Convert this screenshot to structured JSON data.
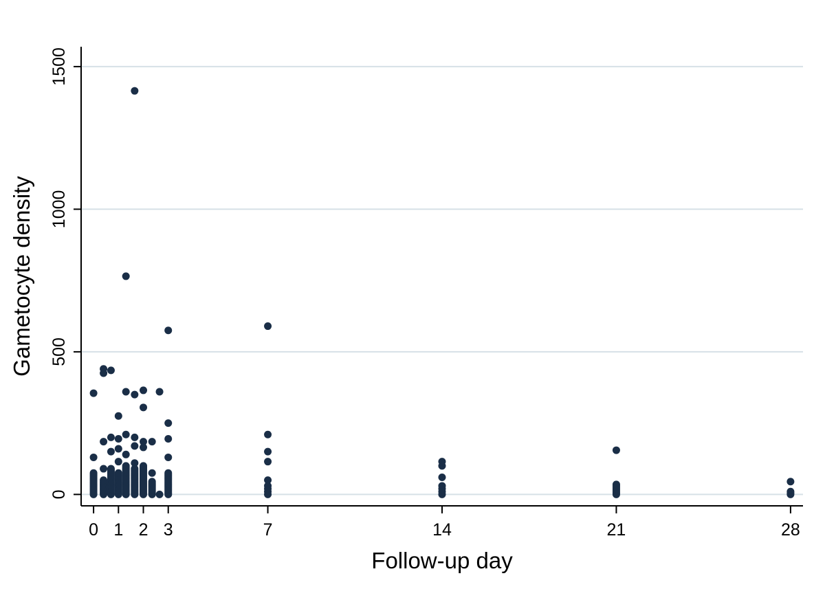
{
  "colors": {
    "marker": "#1a2e47",
    "grid": "#d6e0e6",
    "axis": "#000000",
    "background": "#ffffff"
  },
  "chart_data": {
    "type": "scatter",
    "title": "",
    "xlabel": "Follow-up day",
    "ylabel": "Gametocyte density",
    "xlim": [
      -0.5,
      28.5
    ],
    "ylim": [
      -40,
      1560
    ],
    "x_ticks": [
      0,
      1,
      2,
      3,
      7,
      14,
      21,
      28
    ],
    "x_tick_labels": [
      "0",
      "1",
      "2",
      "3",
      "7",
      "14",
      "21",
      "28"
    ],
    "y_ticks": [
      0,
      500,
      1000,
      1500
    ],
    "y_tick_labels": [
      "0",
      "500",
      "1000",
      "1500"
    ],
    "grid": "horizontal",
    "legend": "none",
    "points": [
      [
        0,
        0
      ],
      [
        0,
        5
      ],
      [
        0,
        10
      ],
      [
        0,
        15
      ],
      [
        0,
        20
      ],
      [
        0,
        25
      ],
      [
        0,
        30
      ],
      [
        0,
        35
      ],
      [
        0,
        40
      ],
      [
        0,
        45
      ],
      [
        0,
        50
      ],
      [
        0,
        55
      ],
      [
        0,
        60
      ],
      [
        0,
        65
      ],
      [
        0,
        70
      ],
      [
        0,
        75
      ],
      [
        0,
        130
      ],
      [
        0,
        355
      ],
      [
        0.4,
        0
      ],
      [
        0.4,
        5
      ],
      [
        0.4,
        10
      ],
      [
        0.4,
        15
      ],
      [
        0.4,
        20
      ],
      [
        0.4,
        25
      ],
      [
        0.4,
        30
      ],
      [
        0.4,
        35
      ],
      [
        0.4,
        40
      ],
      [
        0.4,
        45
      ],
      [
        0.4,
        50
      ],
      [
        0.4,
        90
      ],
      [
        0.4,
        185
      ],
      [
        0.4,
        425
      ],
      [
        0.4,
        440
      ],
      [
        0.7,
        0
      ],
      [
        0.7,
        5
      ],
      [
        0.7,
        10
      ],
      [
        0.7,
        15
      ],
      [
        0.7,
        20
      ],
      [
        0.7,
        25
      ],
      [
        0.7,
        30
      ],
      [
        0.7,
        35
      ],
      [
        0.7,
        40
      ],
      [
        0.7,
        45
      ],
      [
        0.7,
        50
      ],
      [
        0.7,
        55
      ],
      [
        0.7,
        60
      ],
      [
        0.7,
        65
      ],
      [
        0.7,
        70
      ],
      [
        0.7,
        75
      ],
      [
        0.7,
        80
      ],
      [
        0.7,
        85
      ],
      [
        0.7,
        90
      ],
      [
        0.7,
        150
      ],
      [
        0.7,
        200
      ],
      [
        0.7,
        435
      ],
      [
        1,
        0
      ],
      [
        1,
        5
      ],
      [
        1,
        10
      ],
      [
        1,
        15
      ],
      [
        1,
        20
      ],
      [
        1,
        25
      ],
      [
        1,
        30
      ],
      [
        1,
        35
      ],
      [
        1,
        40
      ],
      [
        1,
        45
      ],
      [
        1,
        50
      ],
      [
        1,
        55
      ],
      [
        1,
        60
      ],
      [
        1,
        65
      ],
      [
        1,
        70
      ],
      [
        1,
        75
      ],
      [
        1,
        115
      ],
      [
        1,
        160
      ],
      [
        1,
        195
      ],
      [
        1,
        275
      ],
      [
        1.3,
        0
      ],
      [
        1.3,
        5
      ],
      [
        1.3,
        10
      ],
      [
        1.3,
        15
      ],
      [
        1.3,
        20
      ],
      [
        1.3,
        25
      ],
      [
        1.3,
        30
      ],
      [
        1.3,
        35
      ],
      [
        1.3,
        40
      ],
      [
        1.3,
        45
      ],
      [
        1.3,
        50
      ],
      [
        1.3,
        55
      ],
      [
        1.3,
        60
      ],
      [
        1.3,
        65
      ],
      [
        1.3,
        70
      ],
      [
        1.3,
        75
      ],
      [
        1.3,
        80
      ],
      [
        1.3,
        85
      ],
      [
        1.3,
        90
      ],
      [
        1.3,
        95
      ],
      [
        1.3,
        100
      ],
      [
        1.3,
        140
      ],
      [
        1.3,
        210
      ],
      [
        1.3,
        360
      ],
      [
        1.3,
        765
      ],
      [
        1.65,
        0
      ],
      [
        1.65,
        5
      ],
      [
        1.65,
        10
      ],
      [
        1.65,
        15
      ],
      [
        1.65,
        20
      ],
      [
        1.65,
        25
      ],
      [
        1.65,
        30
      ],
      [
        1.65,
        35
      ],
      [
        1.65,
        40
      ],
      [
        1.65,
        45
      ],
      [
        1.65,
        50
      ],
      [
        1.65,
        55
      ],
      [
        1.65,
        60
      ],
      [
        1.65,
        65
      ],
      [
        1.65,
        70
      ],
      [
        1.65,
        75
      ],
      [
        1.65,
        80
      ],
      [
        1.65,
        85
      ],
      [
        1.65,
        90
      ],
      [
        1.65,
        110
      ],
      [
        1.65,
        170
      ],
      [
        1.65,
        200
      ],
      [
        1.65,
        350
      ],
      [
        1.65,
        1415
      ],
      [
        2,
        0
      ],
      [
        2,
        5
      ],
      [
        2,
        10
      ],
      [
        2,
        15
      ],
      [
        2,
        20
      ],
      [
        2,
        25
      ],
      [
        2,
        30
      ],
      [
        2,
        35
      ],
      [
        2,
        40
      ],
      [
        2,
        45
      ],
      [
        2,
        50
      ],
      [
        2,
        55
      ],
      [
        2,
        60
      ],
      [
        2,
        65
      ],
      [
        2,
        70
      ],
      [
        2,
        75
      ],
      [
        2,
        80
      ],
      [
        2,
        85
      ],
      [
        2,
        90
      ],
      [
        2,
        95
      ],
      [
        2,
        100
      ],
      [
        2,
        165
      ],
      [
        2,
        185
      ],
      [
        2,
        305
      ],
      [
        2,
        365
      ],
      [
        2.35,
        0
      ],
      [
        2.35,
        5
      ],
      [
        2.35,
        10
      ],
      [
        2.35,
        15
      ],
      [
        2.35,
        20
      ],
      [
        2.35,
        25
      ],
      [
        2.35,
        30
      ],
      [
        2.35,
        35
      ],
      [
        2.35,
        40
      ],
      [
        2.35,
        45
      ],
      [
        2.35,
        75
      ],
      [
        2.35,
        185
      ],
      [
        2.65,
        0
      ],
      [
        2.65,
        360
      ],
      [
        3,
        0
      ],
      [
        3,
        5
      ],
      [
        3,
        10
      ],
      [
        3,
        15
      ],
      [
        3,
        20
      ],
      [
        3,
        25
      ],
      [
        3,
        30
      ],
      [
        3,
        35
      ],
      [
        3,
        40
      ],
      [
        3,
        45
      ],
      [
        3,
        50
      ],
      [
        3,
        55
      ],
      [
        3,
        60
      ],
      [
        3,
        65
      ],
      [
        3,
        70
      ],
      [
        3,
        75
      ],
      [
        3,
        130
      ],
      [
        3,
        195
      ],
      [
        3,
        250
      ],
      [
        3,
        575
      ],
      [
        7,
        0
      ],
      [
        7,
        10
      ],
      [
        7,
        20
      ],
      [
        7,
        30
      ],
      [
        7,
        50
      ],
      [
        7,
        115
      ],
      [
        7,
        150
      ],
      [
        7,
        210
      ],
      [
        7,
        590
      ],
      [
        14,
        0
      ],
      [
        14,
        10
      ],
      [
        14,
        20
      ],
      [
        14,
        30
      ],
      [
        14,
        60
      ],
      [
        14,
        100
      ],
      [
        14,
        115
      ],
      [
        21,
        0
      ],
      [
        21,
        5
      ],
      [
        21,
        10
      ],
      [
        21,
        15
      ],
      [
        21,
        20
      ],
      [
        21,
        25
      ],
      [
        21,
        30
      ],
      [
        21,
        35
      ],
      [
        21,
        155
      ],
      [
        28,
        0
      ],
      [
        28,
        5
      ],
      [
        28,
        10
      ],
      [
        28,
        45
      ]
    ]
  }
}
